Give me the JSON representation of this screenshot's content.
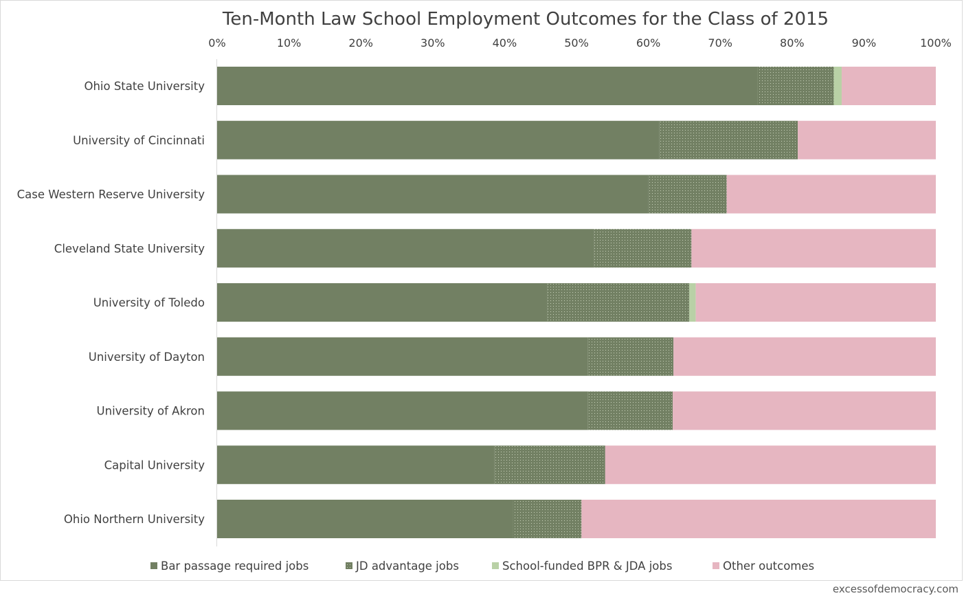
{
  "chart_data": {
    "type": "bar",
    "orientation": "horizontal",
    "stacked": true,
    "title": "Ten-Month Law School Employment Outcomes for the Class of 2015",
    "xlim": [
      0,
      100
    ],
    "x_tick_labels": [
      "0%",
      "10%",
      "20%",
      "30%",
      "40%",
      "50%",
      "60%",
      "70%",
      "80%",
      "90%",
      "100%"
    ],
    "x_axis_position": "top",
    "grid": false,
    "legend_position": "bottom",
    "categories": [
      "Ohio State University",
      "University of Cincinnati",
      "Case Western Reserve University",
      "Cleveland State University",
      "University of Toledo",
      "University of Dayton",
      "University of Akron",
      "Capital University",
      "Ohio Northern University"
    ],
    "series": [
      {
        "name": "Bar passage required jobs",
        "color": "#728063",
        "pattern": "solid",
        "values": [
          75.2,
          61.5,
          60.0,
          52.4,
          45.9,
          51.6,
          51.6,
          38.6,
          41.2
        ]
      },
      {
        "name": "JD advantage jobs",
        "color": "#728063",
        "pattern": "dotted",
        "values": [
          10.6,
          19.3,
          10.9,
          13.6,
          19.8,
          11.9,
          11.8,
          15.4,
          9.5
        ]
      },
      {
        "name": "School-funded BPR & JDA jobs",
        "color": "#b9d1a6",
        "pattern": "solid",
        "values": [
          1.1,
          0.0,
          0.0,
          0.0,
          0.9,
          0.0,
          0.0,
          0.0,
          0.0
        ]
      },
      {
        "name": "Other outcomes",
        "color": "#e6b6c1",
        "pattern": "solid",
        "values": [
          13.1,
          19.2,
          29.1,
          34.0,
          33.4,
          36.5,
          36.6,
          46.0,
          49.3
        ]
      }
    ]
  },
  "source_credit": "excessofdemocracy.com"
}
